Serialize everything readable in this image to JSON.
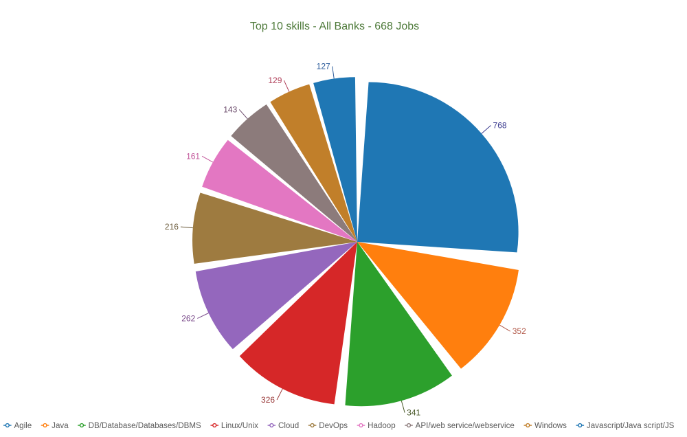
{
  "chart_data": {
    "type": "pie",
    "title": "Top 10 skills - All Banks - 668 Jobs",
    "title_color": "#4e7a3a",
    "exploded": true,
    "legend_position": "bottom",
    "slices": [
      {
        "label": "Agile",
        "value": 768,
        "color": "#1f77b4",
        "label_color": "#3b3b8f"
      },
      {
        "label": "Java",
        "value": 352,
        "color": "#ff7f0e",
        "label_color": "#b25a4a"
      },
      {
        "label": "DB/Database/Databases/DBMS",
        "value": 341,
        "color": "#2ca02c",
        "label_color": "#4a5a2a"
      },
      {
        "label": "Linux/Unix",
        "value": 326,
        "color": "#d62728",
        "label_color": "#9a3a3a"
      },
      {
        "label": "Cloud",
        "value": 262,
        "color": "#9467bd",
        "label_color": "#7a4a8a"
      },
      {
        "label": "DevOps",
        "value": 216,
        "color": "#9e7b40",
        "label_color": "#6a5a3a"
      },
      {
        "label": "Hadoop",
        "value": 161,
        "color": "#e377c2",
        "label_color": "#c2559a"
      },
      {
        "label": "API/web service/webservice",
        "value": 143,
        "color": "#8c7b7b",
        "label_color": "#6a4a6a"
      },
      {
        "label": "Windows",
        "value": 129,
        "color": "#c17f2a",
        "label_color": "#b0405a"
      },
      {
        "label": "Javascript/Java script/JS",
        "value": 127,
        "color": "#1f77b4",
        "label_color": "#2a5a9a"
      }
    ]
  }
}
